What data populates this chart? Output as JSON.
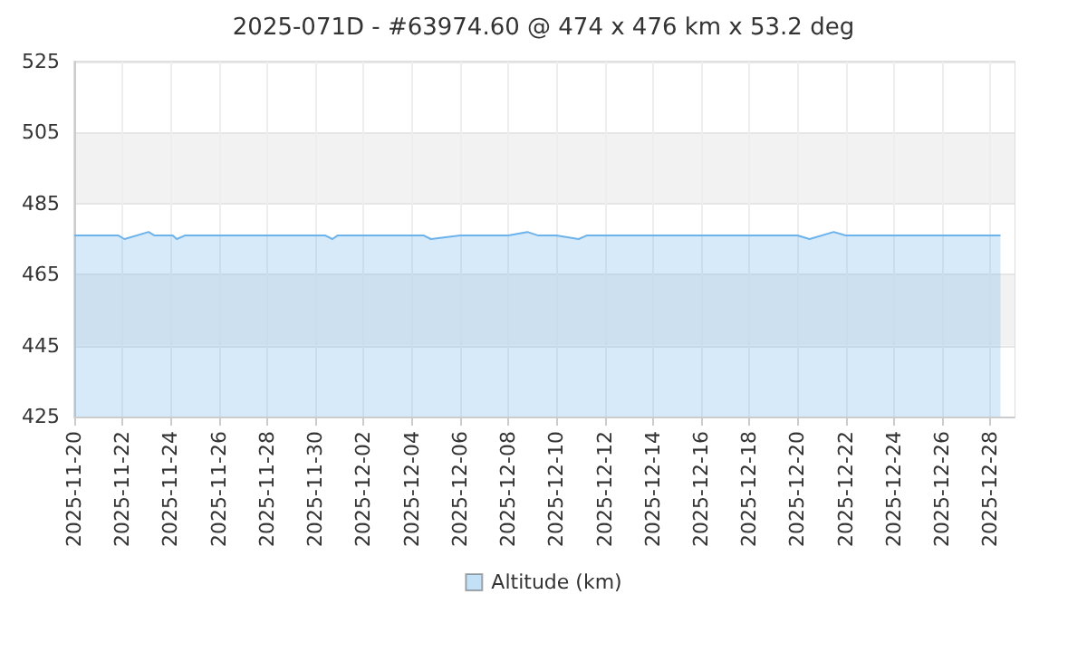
{
  "chart_data": {
    "type": "area",
    "title": "2025-071D - #63974.60 @ 474 x 476 km x 53.2 deg",
    "x": [
      "2025-11-20",
      "2025-11-21T20:00",
      "2025-11-22T02:00",
      "2025-11-23T02:00",
      "2025-11-23T08:00",
      "2025-11-24T02:00",
      "2025-11-24T06:00",
      "2025-11-24T14:00",
      "2025-11-30T10:00",
      "2025-11-30T17:00",
      "2025-11-30T22:00",
      "2025-12-04T12:00",
      "2025-12-04T19:00",
      "2025-12-06T00:00",
      "2025-12-08T00:00",
      "2025-12-08T19:00",
      "2025-12-09T06:00",
      "2025-12-10T00:00",
      "2025-12-10T22:00",
      "2025-12-11T06:00",
      "2025-12-20T00:00",
      "2025-12-20T12:00",
      "2025-12-21T12:00",
      "2025-12-22T00:00",
      "2025-12-28T10:00"
    ],
    "series": [
      {
        "name": "Altitude (km)",
        "color": "#6cb2eb",
        "values": [
          476,
          476,
          475,
          477,
          476,
          476,
          475,
          476,
          476,
          475,
          476,
          476,
          475,
          476,
          476,
          477,
          476,
          476,
          475,
          476,
          476,
          475,
          477,
          476,
          476
        ]
      }
    ],
    "xlim": [
      "2025-11-20",
      "2025-12-29"
    ],
    "xticks": [
      "2025-11-20",
      "2025-11-22",
      "2025-11-24",
      "2025-11-26",
      "2025-11-28",
      "2025-11-30",
      "2025-12-02",
      "2025-12-04",
      "2025-12-06",
      "2025-12-08",
      "2025-12-10",
      "2025-12-12",
      "2025-12-14",
      "2025-12-16",
      "2025-12-18",
      "2025-12-20",
      "2025-12-22",
      "2025-12-24",
      "2025-12-26",
      "2025-12-28"
    ],
    "ylim": [
      425,
      525
    ],
    "yticks": [
      425,
      445,
      465,
      485,
      505,
      525
    ],
    "grid": true,
    "legend": "bottom",
    "marker": "none",
    "line_style": "solid"
  }
}
